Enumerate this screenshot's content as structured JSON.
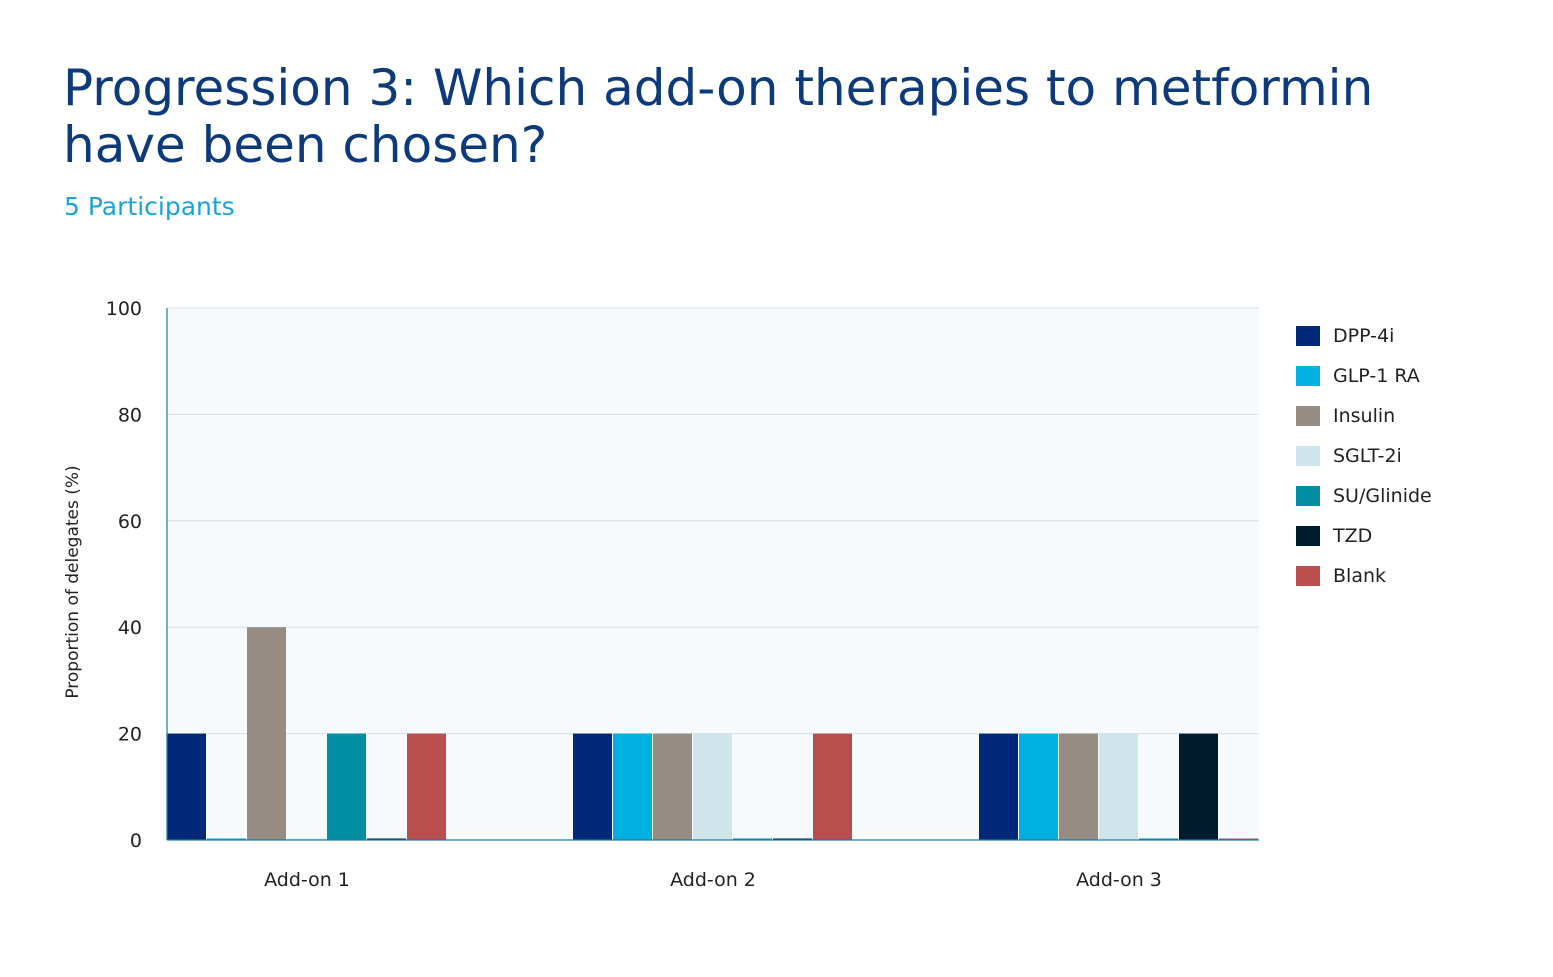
{
  "title": "Progression 3: Which add-on therapies to metformin have been chosen?",
  "subtitle": "5 Participants",
  "colors": {
    "title": "#0d3a7a",
    "subtitle": "#1aa3d9",
    "plot_background": "#f7fafd",
    "gridline": "#d7dee6",
    "axis": "#1a7fa0"
  },
  "chart_data": {
    "type": "bar",
    "title": "",
    "xlabel": "",
    "ylabel": "Proportion of delegates (%)",
    "ylim": [
      0,
      100
    ],
    "yticks": [
      0,
      20,
      40,
      60,
      80,
      100
    ],
    "grid": true,
    "legend_position": "right",
    "categories": [
      "Add-on 1",
      "Add-on 2",
      "Add-on 3"
    ],
    "series": [
      {
        "name": "DPP-4i",
        "color": "#002a78",
        "values": [
          20,
          20,
          20
        ]
      },
      {
        "name": "GLP-1 RA",
        "color": "#00b0e0",
        "values": [
          0,
          20,
          20
        ]
      },
      {
        "name": "Insulin",
        "color": "#968c84",
        "values": [
          40,
          20,
          20
        ]
      },
      {
        "name": "SGLT-2i",
        "color": "#cfe4eb",
        "values": [
          0,
          20,
          20
        ]
      },
      {
        "name": "SU/Glinide",
        "color": "#008ea3",
        "values": [
          20,
          0,
          0
        ]
      },
      {
        "name": "TZD",
        "color": "#021c2f",
        "values": [
          0,
          0,
          20
        ]
      },
      {
        "name": "Blank",
        "color": "#b84e4e",
        "values": [
          20,
          20,
          0
        ]
      }
    ]
  }
}
